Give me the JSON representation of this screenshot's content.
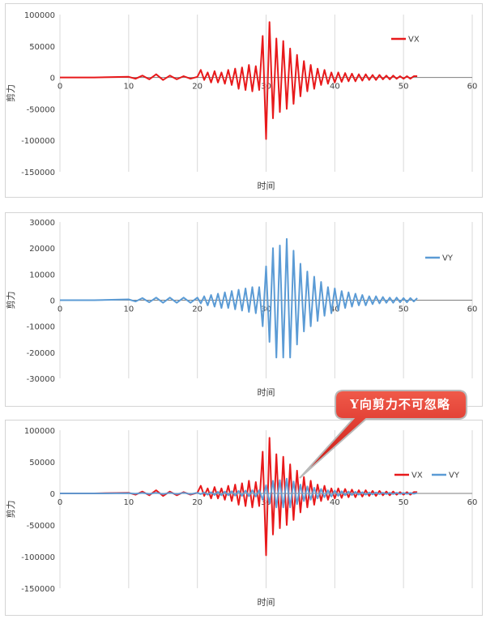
{
  "colors": {
    "vx": "#e8191b",
    "vy": "#5b9bd5",
    "grid": "#d9d9d9",
    "axis": "#7f7f7f",
    "text": "#404040",
    "callout_fill": "#e5231f",
    "callout_stroke": "#c0c0c0"
  },
  "callout": {
    "text": "Y向剪力不可忽略"
  },
  "chart_data": [
    {
      "type": "line",
      "xlabel": "时间",
      "ylabel": "剪力",
      "xlim": [
        0,
        60
      ],
      "ylim": [
        -150000,
        100000
      ],
      "xticks": [
        0,
        10,
        20,
        30,
        40,
        50,
        60
      ],
      "yticks": [
        -150000,
        -100000,
        -50000,
        0,
        50000,
        100000
      ],
      "legend_position": "right",
      "series": [
        {
          "name": "VX",
          "color": "#e8191b",
          "x": [
            0,
            5,
            10,
            11,
            12,
            13,
            14,
            15,
            16,
            17,
            18,
            19,
            20,
            20.5,
            21,
            21.5,
            22,
            22.5,
            23,
            23.5,
            24,
            24.5,
            25,
            25.5,
            26,
            26.5,
            27,
            27.5,
            28,
            28.5,
            29,
            29.5,
            30,
            30.5,
            31,
            31.5,
            32,
            32.5,
            33,
            33.5,
            34,
            34.5,
            35,
            35.5,
            36,
            36.5,
            37,
            37.5,
            38,
            38.5,
            39,
            39.5,
            40,
            40.5,
            41,
            41.5,
            42,
            42.5,
            43,
            43.5,
            44,
            44.5,
            45,
            45.5,
            46,
            46.5,
            47,
            47.5,
            48,
            48.5,
            49,
            49.5,
            50,
            50.5,
            51,
            51.5,
            52
          ],
          "y": [
            0,
            0,
            1000,
            -2000,
            3000,
            -3000,
            5000,
            -4000,
            3000,
            -3000,
            2000,
            -2000,
            1000,
            12000,
            -4000,
            8000,
            -8000,
            10000,
            -8000,
            8000,
            -10000,
            12000,
            -12000,
            14000,
            -18000,
            16000,
            -20000,
            20000,
            -22000,
            18000,
            -20000,
            66000,
            -98000,
            88000,
            -65000,
            62000,
            -55000,
            58000,
            -50000,
            46000,
            -42000,
            36000,
            -30000,
            26000,
            -22000,
            20000,
            -18000,
            14000,
            -12000,
            12000,
            -10000,
            8000,
            -8000,
            8000,
            -7000,
            7000,
            -6000,
            6000,
            -6000,
            5000,
            -5000,
            5000,
            -4000,
            4000,
            -4000,
            4000,
            -3000,
            3000,
            -3000,
            3000,
            -2000,
            2000,
            -2000,
            2000,
            -2000,
            2000,
            2000
          ]
        }
      ]
    },
    {
      "type": "line",
      "xlabel": "时间",
      "ylabel": "剪力",
      "xlim": [
        0,
        60
      ],
      "ylim": [
        -30000,
        30000
      ],
      "xticks": [
        0,
        10,
        20,
        30,
        40,
        50,
        60
      ],
      "yticks": [
        -30000,
        -20000,
        -10000,
        0,
        10000,
        20000,
        30000
      ],
      "legend_position": "right",
      "series": [
        {
          "name": "VY",
          "color": "#5b9bd5",
          "x": [
            0,
            5,
            10,
            11,
            12,
            13,
            14,
            15,
            16,
            17,
            18,
            19,
            20,
            20.5,
            21,
            21.5,
            22,
            22.5,
            23,
            23.5,
            24,
            24.5,
            25,
            25.5,
            26,
            26.5,
            27,
            27.5,
            28,
            28.5,
            29,
            29.5,
            30,
            30.5,
            31,
            31.5,
            32,
            32.5,
            33,
            33.5,
            34,
            34.5,
            35,
            35.5,
            36,
            36.5,
            37,
            37.5,
            38,
            38.5,
            39,
            39.5,
            40,
            40.5,
            41,
            41.5,
            42,
            42.5,
            43,
            43.5,
            44,
            44.5,
            45,
            45.5,
            46,
            46.5,
            47,
            47.5,
            48,
            48.5,
            49,
            49.5,
            50,
            50.5,
            51,
            51.5,
            52
          ],
          "y": [
            0,
            0,
            300,
            -500,
            800,
            -800,
            1000,
            -1000,
            1000,
            -1000,
            1000,
            -1000,
            1000,
            -1200,
            1500,
            -2000,
            2000,
            -2500,
            2500,
            -3000,
            3000,
            -3000,
            3500,
            -3500,
            4000,
            -4000,
            4500,
            -4500,
            5000,
            -5000,
            5000,
            -10000,
            13000,
            -16000,
            20000,
            -22000,
            21000,
            -22000,
            23500,
            -22000,
            19000,
            -17000,
            14000,
            -12000,
            11000,
            -10000,
            9000,
            -8000,
            7000,
            -6000,
            5000,
            -5000,
            4500,
            -4000,
            3500,
            -3000,
            3000,
            -2500,
            2500,
            -2000,
            2000,
            -2000,
            1500,
            -1500,
            1500,
            -1200,
            1200,
            -1000,
            1000,
            -1000,
            1000,
            -800,
            800,
            -800,
            800,
            -500,
            800
          ]
        }
      ]
    },
    {
      "type": "line",
      "xlabel": "时间",
      "ylabel": "剪力",
      "xlim": [
        0,
        60
      ],
      "ylim": [
        -150000,
        100000
      ],
      "xticks": [
        0,
        10,
        20,
        30,
        40,
        50,
        60
      ],
      "yticks": [
        -150000,
        -100000,
        -50000,
        0,
        50000,
        100000
      ],
      "legend_position": "right",
      "series": [
        {
          "name": "VX",
          "color": "#e8191b",
          "x": [
            0,
            5,
            10,
            11,
            12,
            13,
            14,
            15,
            16,
            17,
            18,
            19,
            20,
            20.5,
            21,
            21.5,
            22,
            22.5,
            23,
            23.5,
            24,
            24.5,
            25,
            25.5,
            26,
            26.5,
            27,
            27.5,
            28,
            28.5,
            29,
            29.5,
            30,
            30.5,
            31,
            31.5,
            32,
            32.5,
            33,
            33.5,
            34,
            34.5,
            35,
            35.5,
            36,
            36.5,
            37,
            37.5,
            38,
            38.5,
            39,
            39.5,
            40,
            40.5,
            41,
            41.5,
            42,
            42.5,
            43,
            43.5,
            44,
            44.5,
            45,
            45.5,
            46,
            46.5,
            47,
            47.5,
            48,
            48.5,
            49,
            49.5,
            50,
            50.5,
            51,
            51.5,
            52
          ],
          "y": [
            0,
            0,
            1000,
            -2000,
            3000,
            -3000,
            5000,
            -4000,
            3000,
            -3000,
            2000,
            -2000,
            1000,
            12000,
            -4000,
            8000,
            -8000,
            10000,
            -8000,
            8000,
            -10000,
            12000,
            -12000,
            14000,
            -18000,
            16000,
            -20000,
            20000,
            -22000,
            18000,
            -20000,
            66000,
            -98000,
            88000,
            -65000,
            62000,
            -55000,
            58000,
            -50000,
            46000,
            -42000,
            36000,
            -30000,
            26000,
            -22000,
            20000,
            -18000,
            14000,
            -12000,
            12000,
            -10000,
            8000,
            -8000,
            8000,
            -7000,
            7000,
            -6000,
            6000,
            -6000,
            5000,
            -5000,
            5000,
            -4000,
            4000,
            -4000,
            4000,
            -3000,
            3000,
            -3000,
            3000,
            -2000,
            2000,
            -2000,
            2000,
            -2000,
            2000,
            2000
          ]
        },
        {
          "name": "VY",
          "color": "#5b9bd5",
          "x": [
            0,
            5,
            10,
            11,
            12,
            13,
            14,
            15,
            16,
            17,
            18,
            19,
            20,
            20.5,
            21,
            21.5,
            22,
            22.5,
            23,
            23.5,
            24,
            24.5,
            25,
            25.5,
            26,
            26.5,
            27,
            27.5,
            28,
            28.5,
            29,
            29.5,
            30,
            30.5,
            31,
            31.5,
            32,
            32.5,
            33,
            33.5,
            34,
            34.5,
            35,
            35.5,
            36,
            36.5,
            37,
            37.5,
            38,
            38.5,
            39,
            39.5,
            40,
            40.5,
            41,
            41.5,
            42,
            42.5,
            43,
            43.5,
            44,
            44.5,
            45,
            45.5,
            46,
            46.5,
            47,
            47.5,
            48,
            48.5,
            49,
            49.5,
            50,
            50.5,
            51,
            51.5,
            52
          ],
          "y": [
            0,
            0,
            300,
            -500,
            800,
            -800,
            1000,
            -1000,
            1000,
            -1000,
            1000,
            -1000,
            1000,
            -1200,
            1500,
            -2000,
            2000,
            -2500,
            2500,
            -3000,
            3000,
            -3000,
            3500,
            -3500,
            4000,
            -4000,
            4500,
            -4500,
            5000,
            -5000,
            5000,
            -10000,
            13000,
            -16000,
            20000,
            -22000,
            21000,
            -22000,
            23500,
            -22000,
            19000,
            -17000,
            14000,
            -12000,
            11000,
            -10000,
            9000,
            -8000,
            7000,
            -6000,
            5000,
            -5000,
            4500,
            -4000,
            3500,
            -3000,
            3000,
            -2500,
            2500,
            -2000,
            2000,
            -2000,
            1500,
            -1500,
            1500,
            -1200,
            1200,
            -1000,
            1000,
            -1000,
            1000,
            -800,
            800,
            -800,
            800,
            -500,
            800
          ]
        }
      ]
    }
  ]
}
